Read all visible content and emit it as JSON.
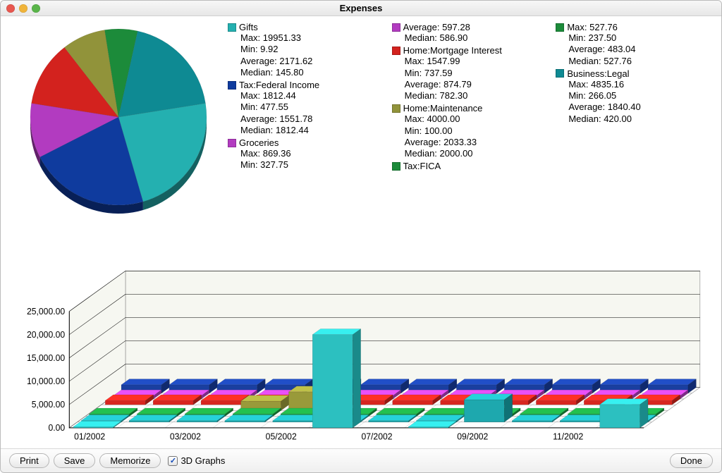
{
  "window": {
    "title": "Expenses",
    "traffic_lights": {
      "close": "#e8574f",
      "min": "#f0b43a",
      "zoom": "#5ab54a"
    }
  },
  "pie": {
    "radius": 125,
    "shadow_offset": 10,
    "slices": [
      {
        "name": "Gifts",
        "value": 23,
        "color": "#24b0b0"
      },
      {
        "name": "Tax:Federal Income",
        "value": 22,
        "color": "#0f3b9e"
      },
      {
        "name": "Groceries",
        "value": 10,
        "color": "#b23bc0"
      },
      {
        "name": "Home:Mortgage Interest",
        "value": 12,
        "color": "#d3221e"
      },
      {
        "name": "Home:Maintenance",
        "value": 8,
        "color": "#91933a"
      },
      {
        "name": "Tax:FICA",
        "value": 6,
        "color": "#1c8b3a"
      },
      {
        "name": "Business:Legal",
        "value": 19,
        "color": "#0e8a93"
      }
    ]
  },
  "legend": {
    "columns": [
      [
        {
          "name": "Gifts",
          "color": "#24b0b0",
          "stats": [
            "Max: 19951.33",
            "Min: 9.92",
            "Average: 2171.62",
            "Median: 145.80"
          ]
        },
        {
          "name": "Tax:Federal Income",
          "color": "#0f3b9e",
          "stats": [
            "Max: 1812.44",
            "Min: 477.55",
            "Average: 1551.78",
            "Median: 1812.44"
          ]
        },
        {
          "name": "Groceries",
          "color": "#b23bc0",
          "stats": [
            "Max: 869.36",
            "Min: 327.75"
          ]
        }
      ],
      [
        {
          "name_cont": true,
          "color": "#b23bc0",
          "stats": [
            "Average: 597.28",
            "Median: 586.90"
          ]
        },
        {
          "name": "Home:Mortgage Interest",
          "color": "#d3221e",
          "stats": [
            "Max: 1547.99",
            "Min: 737.59",
            "Average: 874.79",
            "Median: 782.30"
          ]
        },
        {
          "name": "Home:Maintenance",
          "color": "#91933a",
          "stats": [
            "Max: 4000.00",
            "Min: 100.00",
            "Average: 2033.33",
            "Median: 2000.00"
          ]
        },
        {
          "name": "Tax:FICA",
          "color": "#1c8b3a",
          "stats": []
        }
      ],
      [
        {
          "name_cont": true,
          "color": "#1c8b3a",
          "stats": [
            "Max: 527.76",
            "Min: 237.50",
            "Average: 483.04",
            "Median: 527.76"
          ]
        },
        {
          "name": "Business:Legal",
          "color": "#0e8a93",
          "stats": [
            "Max: 4835.16",
            "Min: 266.05",
            "Average: 1840.40",
            "Median: 420.00"
          ]
        }
      ]
    ]
  },
  "bar_chart": {
    "y_ticks": [
      "0.00",
      "5,000.00",
      "10,000.00",
      "15,000.00",
      "20,000.00",
      "25,000.00"
    ],
    "y_max": 25000,
    "x_labels": [
      "01/2002",
      "03/2002",
      "05/2002",
      "07/2002",
      "09/2002",
      "11/2002"
    ],
    "n_months": 12,
    "depth_x": 40,
    "depth_y": 30,
    "series": [
      {
        "name": "Tax:Federal Income",
        "color": "#1a3fa0",
        "shade": "#102a6e",
        "values": [
          1800,
          1800,
          1800,
          1800,
          1800,
          1800,
          1800,
          1800,
          1800,
          1800,
          1800,
          1800
        ]
      },
      {
        "name": "Groceries",
        "color": "#bb40c6",
        "shade": "#7e2a86",
        "values": [
          700,
          700,
          700,
          700,
          700,
          700,
          700,
          700,
          700,
          700,
          700,
          700
        ]
      },
      {
        "name": "Home:Mortgage Interest",
        "color": "#d8261f",
        "shade": "#951912",
        "values": [
          900,
          900,
          900,
          900,
          900,
          900,
          900,
          900,
          900,
          900,
          900,
          900
        ]
      },
      {
        "name": "Home:Maintenance",
        "color": "#999a3a",
        "shade": "#6a6a28",
        "values": [
          0,
          0,
          0,
          2000,
          4000,
          0,
          0,
          0,
          0,
          0,
          0,
          0
        ]
      },
      {
        "name": "Tax:FICA",
        "color": "#1c9a3f",
        "shade": "#11682a",
        "values": [
          500,
          500,
          500,
          500,
          500,
          500,
          500,
          500,
          500,
          500,
          500,
          500
        ]
      },
      {
        "name": "Business:Legal",
        "color": "#1ea8ae",
        "shade": "#0f7276",
        "values": [
          300,
          300,
          300,
          300,
          300,
          300,
          300,
          300,
          4800,
          300,
          300,
          300
        ]
      },
      {
        "name": "Gifts",
        "color": "#2cc0c0",
        "shade": "#1a8a8a",
        "values": [
          200,
          0,
          0,
          0,
          0,
          20000,
          0,
          200,
          0,
          0,
          0,
          5000
        ]
      }
    ],
    "plot_background": "#ffffff",
    "wall_color": "#f6f7f1",
    "grid_color": "#000000"
  },
  "footer": {
    "buttons": [
      "Print",
      "Save",
      "Memorize"
    ],
    "checkbox_label": "3D Graphs",
    "checkbox_checked": true,
    "done_label": "Done"
  }
}
